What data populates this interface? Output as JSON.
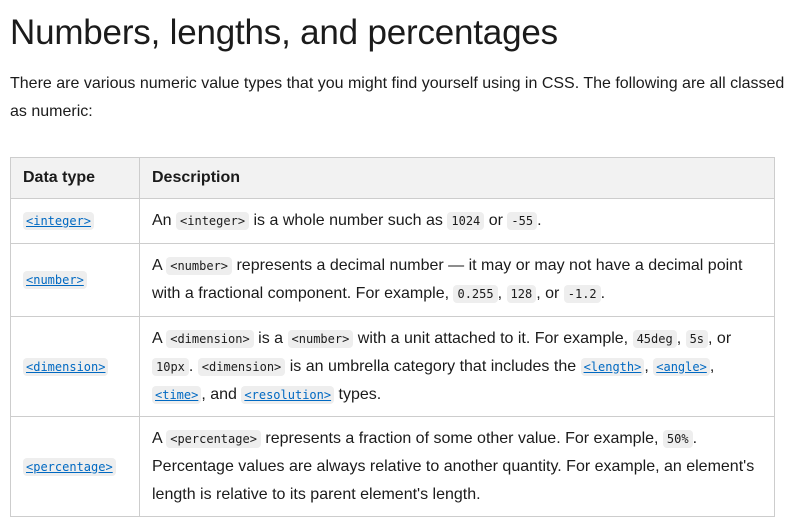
{
  "heading": "Numbers, lengths, and percentages",
  "intro": "There are various numeric value types that you might find yourself using in CSS. The following are all classed as numeric:",
  "table": {
    "headers": [
      "Data type",
      "Description"
    ],
    "rows": [
      {
        "type": "<integer>",
        "desc": [
          "An ",
          "<integer>",
          " is a whole number such as ",
          "1024",
          " or ",
          "-55",
          "."
        ]
      },
      {
        "type": "<number>",
        "desc": [
          "A ",
          "<number>",
          " represents a decimal number — it may or may not have a decimal point with a fractional component. For example, ",
          "0.255",
          ", ",
          "128",
          ", or ",
          "-1.2",
          "."
        ]
      },
      {
        "type": "<dimension>",
        "desc": [
          "A ",
          "<dimension>",
          " is a ",
          "<number>",
          " with a unit attached to it. For example, ",
          "45deg",
          ", ",
          "5s",
          ", or ",
          "10px",
          ". ",
          "<dimension>",
          " is an umbrella category that includes the ",
          "<length>",
          ", ",
          "<angle>",
          ", ",
          "<time>",
          ", and ",
          "<resolution>",
          " types."
        ]
      },
      {
        "type": "<percentage>",
        "desc": [
          "A ",
          "<percentage>",
          " represents a fraction of some other value. For example, ",
          "50%",
          ". Percentage values are always relative to another quantity. For example, an element's length is relative to its parent element's length."
        ]
      }
    ]
  }
}
